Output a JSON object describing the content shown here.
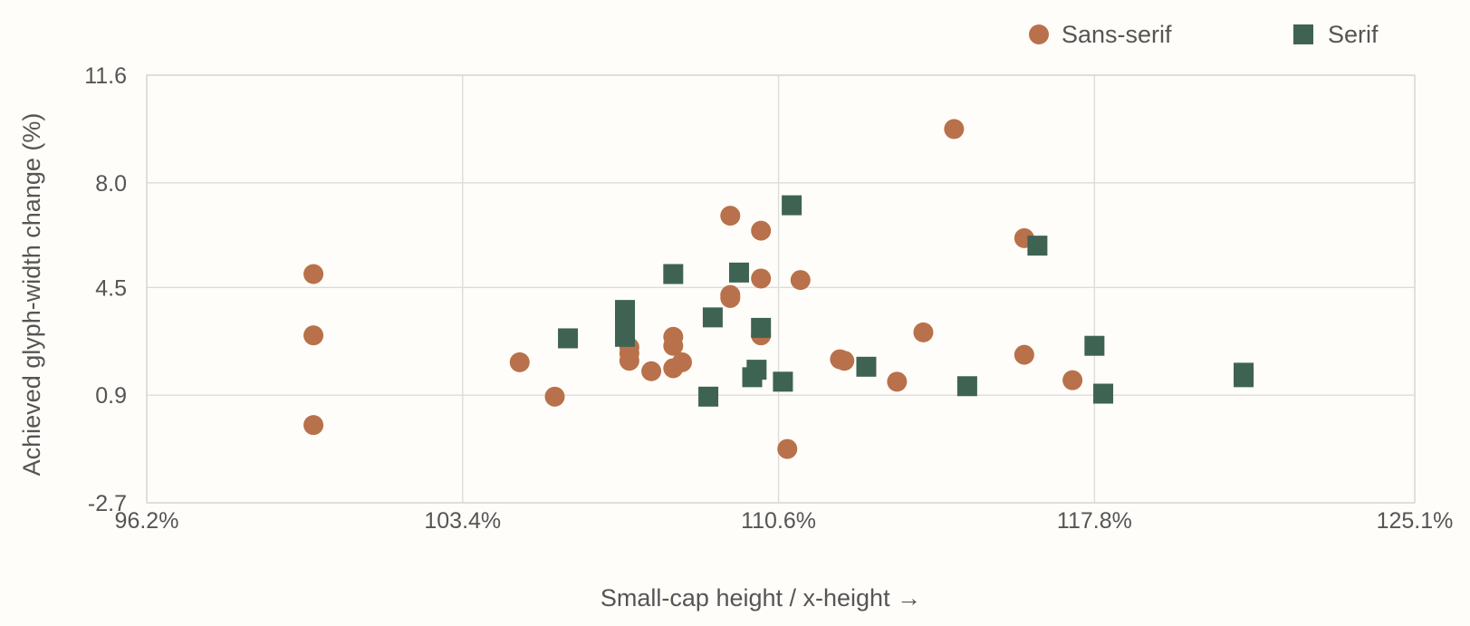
{
  "chart_data": {
    "type": "scatter",
    "title": "",
    "xlabel": "Small-cap height / x-height →",
    "ylabel": "Achieved glyph-width change (%)",
    "xlim": [
      96.2,
      125.1
    ],
    "ylim": [
      -2.7,
      11.6
    ],
    "x_ticks": [
      96.2,
      103.4,
      110.6,
      117.8,
      125.1
    ],
    "x_tick_labels": [
      "96.2%",
      "103.4%",
      "110.6%",
      "117.8%",
      "125.1%"
    ],
    "y_ticks": [
      -2.7,
      0.9,
      4.5,
      8.0,
      11.6
    ],
    "y_tick_labels": [
      "-2.7",
      "0.9",
      "4.5",
      "8.0",
      "11.6"
    ],
    "grid": true,
    "legend_position": "top-right",
    "series": [
      {
        "name": "Sans-serif",
        "marker": "circle",
        "color": "#b8714a",
        "points": [
          [
            100.0,
            4.95
          ],
          [
            100.0,
            2.9
          ],
          [
            100.0,
            -0.1
          ],
          [
            104.7,
            2.0
          ],
          [
            105.5,
            0.85
          ],
          [
            107.2,
            2.5
          ],
          [
            107.2,
            2.3
          ],
          [
            107.2,
            2.05
          ],
          [
            107.7,
            1.7
          ],
          [
            108.2,
            2.85
          ],
          [
            108.2,
            2.55
          ],
          [
            108.2,
            1.8
          ],
          [
            108.4,
            2.0
          ],
          [
            109.5,
            6.9
          ],
          [
            109.5,
            4.25
          ],
          [
            109.5,
            4.15
          ],
          [
            110.2,
            6.4
          ],
          [
            110.2,
            4.8
          ],
          [
            110.2,
            2.9
          ],
          [
            110.8,
            -0.9
          ],
          [
            111.1,
            4.75
          ],
          [
            112.0,
            2.1
          ],
          [
            112.1,
            2.05
          ],
          [
            113.3,
            1.35
          ],
          [
            113.9,
            3.0
          ],
          [
            114.6,
            9.8
          ],
          [
            116.2,
            6.15
          ],
          [
            116.2,
            2.25
          ],
          [
            117.3,
            1.4
          ]
        ]
      },
      {
        "name": "Serif",
        "marker": "square",
        "color": "#3e6352",
        "points": [
          [
            105.8,
            2.8
          ],
          [
            107.1,
            3.75
          ],
          [
            107.1,
            3.4
          ],
          [
            107.1,
            2.85
          ],
          [
            108.2,
            4.95
          ],
          [
            109.0,
            0.85
          ],
          [
            109.1,
            3.5
          ],
          [
            109.7,
            5.0
          ],
          [
            110.0,
            1.5
          ],
          [
            110.1,
            1.75
          ],
          [
            110.2,
            3.15
          ],
          [
            110.7,
            1.35
          ],
          [
            110.9,
            7.25
          ],
          [
            112.6,
            1.85
          ],
          [
            114.9,
            1.2
          ],
          [
            116.5,
            5.9
          ],
          [
            117.8,
            2.55
          ],
          [
            118.0,
            0.95
          ],
          [
            121.2,
            1.5
          ],
          [
            121.2,
            1.65
          ]
        ]
      }
    ]
  }
}
